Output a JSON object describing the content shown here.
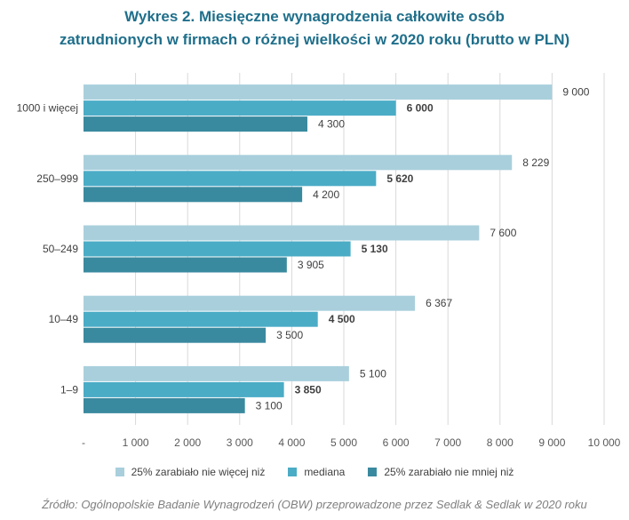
{
  "chart_data": {
    "type": "bar",
    "orientation": "horizontal",
    "title_line1": "Wykres 2. Miesięczne wynagrodzenia całkowite osób",
    "title_line2": "zatrudnionych w firmach o różnej wielkości w 2020 roku (brutto w PLN)",
    "categories": [
      "1000 i więcej",
      "250–999",
      "50–249",
      "10–49",
      "1–9"
    ],
    "series": [
      {
        "name": "25% zarabiało nie więcej niż",
        "color": "#a9cfdc",
        "label_bold": false,
        "values": [
          9000,
          8229,
          7600,
          6367,
          5100
        ],
        "labels": [
          "9 000",
          "8 229",
          "7 600",
          "6 367",
          "5 100"
        ]
      },
      {
        "name": "mediana",
        "color": "#4bacc6",
        "label_bold": true,
        "values": [
          6000,
          5620,
          5130,
          4500,
          3850
        ],
        "labels": [
          "6 000",
          "5 620",
          "5 130",
          "4 500",
          "3 850"
        ]
      },
      {
        "name": "25% zarabiało nie mniej niż",
        "color": "#3a8a9f",
        "label_bold": false,
        "values": [
          4300,
          4200,
          3905,
          3500,
          3100
        ],
        "labels": [
          "4 300",
          "4 200",
          "3 905",
          "3 500",
          "3 100"
        ]
      }
    ],
    "xlim": [
      0,
      10000
    ],
    "x_ticks": [
      "-",
      "1 000",
      "2 000",
      "3 000",
      "4 000",
      "5 000",
      "6 000",
      "7 000",
      "8 000",
      "9 000",
      "10 000"
    ],
    "grid": "vertical",
    "legend_position": "bottom",
    "source": "Źródło: Ogólnopolskie Badanie Wynagrodzeń (OBW) przeprowadzone przez Sedlak & Sedlak w 2020 roku"
  }
}
